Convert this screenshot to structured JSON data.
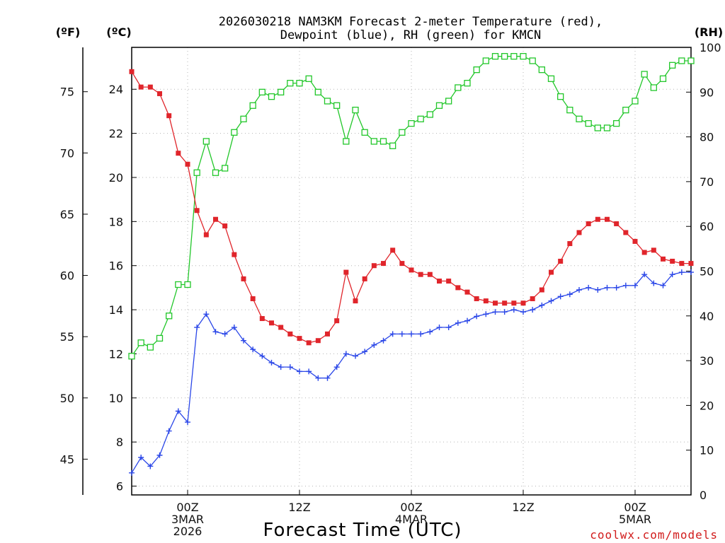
{
  "chart_data": {
    "type": "line",
    "title_lines": [
      "2026030218 NAM3KM Forecast 2-meter Temperature (red),",
      "Dewpoint (blue), RH (green) for KMCN"
    ],
    "xlabel": "Forecast Time (UTC)",
    "credit": "coolwx.com/models",
    "units": {
      "left_outer": "(ºF)",
      "left_inner": "(ºC)",
      "right": "(RH)"
    },
    "x_axis": {
      "unit": "forecast hour",
      "range": [
        0,
        60
      ],
      "ticks": [
        {
          "hour": 6,
          "lines": [
            "00Z",
            "3MAR",
            "2026"
          ]
        },
        {
          "hour": 18,
          "lines": [
            "12Z"
          ]
        },
        {
          "hour": 30,
          "lines": [
            "00Z",
            "4MAR"
          ]
        },
        {
          "hour": 42,
          "lines": [
            "12Z"
          ]
        },
        {
          "hour": 54,
          "lines": [
            "00Z",
            "5MAR"
          ]
        }
      ]
    },
    "y_celsius": {
      "range": [
        5.6,
        25.9
      ],
      "ticks": [
        6,
        8,
        10,
        12,
        14,
        16,
        18,
        20,
        22,
        24
      ]
    },
    "y_fahrenheit": {
      "ticks": [
        45,
        50,
        55,
        60,
        65,
        70,
        75
      ]
    },
    "y_rh": {
      "range": [
        0,
        100
      ],
      "ticks": [
        0,
        10,
        20,
        30,
        40,
        50,
        60,
        70,
        80,
        90,
        100
      ]
    },
    "grid": true,
    "series": [
      {
        "name": "Temperature",
        "axis": "celsius",
        "color": "#e0252b",
        "marker": "filled-square",
        "values": [
          24.8,
          24.1,
          24.1,
          23.8,
          22.8,
          21.1,
          20.6,
          18.5,
          17.4,
          18.1,
          17.8,
          16.5,
          15.4,
          14.5,
          13.6,
          13.4,
          13.2,
          12.9,
          12.7,
          12.5,
          12.6,
          12.9,
          13.5,
          15.7,
          14.4,
          15.4,
          16.0,
          16.1,
          16.7,
          16.1,
          15.8,
          15.6,
          15.6,
          15.3,
          15.3,
          15.0,
          14.8,
          14.5,
          14.4,
          14.3,
          14.3,
          14.3,
          14.3,
          14.5,
          14.9,
          15.7,
          16.2,
          17.0,
          17.5,
          17.9,
          18.1,
          18.1,
          17.9,
          17.5,
          17.1,
          16.6,
          16.7,
          16.3,
          16.2,
          16.1,
          16.1
        ]
      },
      {
        "name": "Dewpoint",
        "axis": "celsius",
        "color": "#2b47e8",
        "marker": "plus",
        "values": [
          6.6,
          7.3,
          6.9,
          7.4,
          8.5,
          9.4,
          8.9,
          13.2,
          13.8,
          13.0,
          12.9,
          13.2,
          12.6,
          12.2,
          11.9,
          11.6,
          11.4,
          11.4,
          11.2,
          11.2,
          10.9,
          10.9,
          11.4,
          12.0,
          11.9,
          12.1,
          12.4,
          12.6,
          12.9,
          12.9,
          12.9,
          12.9,
          13.0,
          13.2,
          13.2,
          13.4,
          13.5,
          13.7,
          13.8,
          13.9,
          13.9,
          14.0,
          13.9,
          14.0,
          14.2,
          14.4,
          14.6,
          14.7,
          14.9,
          15.0,
          14.9,
          15.0,
          15.0,
          15.1,
          15.1,
          15.6,
          15.2,
          15.1,
          15.6,
          15.7,
          15.7
        ]
      },
      {
        "name": "RH",
        "axis": "rh",
        "color": "#22c72a",
        "marker": "open-square",
        "values": [
          31,
          34,
          33,
          35,
          40,
          47,
          47,
          72,
          79,
          72,
          73,
          81,
          84,
          87,
          90,
          89,
          90,
          92,
          92,
          93,
          90,
          88,
          87,
          79,
          86,
          81,
          79,
          79,
          78,
          81,
          83,
          84,
          85,
          87,
          88,
          91,
          92,
          95,
          97,
          98,
          98,
          98,
          98,
          97,
          95,
          93,
          89,
          86,
          84,
          83,
          82,
          82,
          83,
          86,
          88,
          94,
          91,
          93,
          96,
          97,
          97
        ]
      }
    ]
  }
}
